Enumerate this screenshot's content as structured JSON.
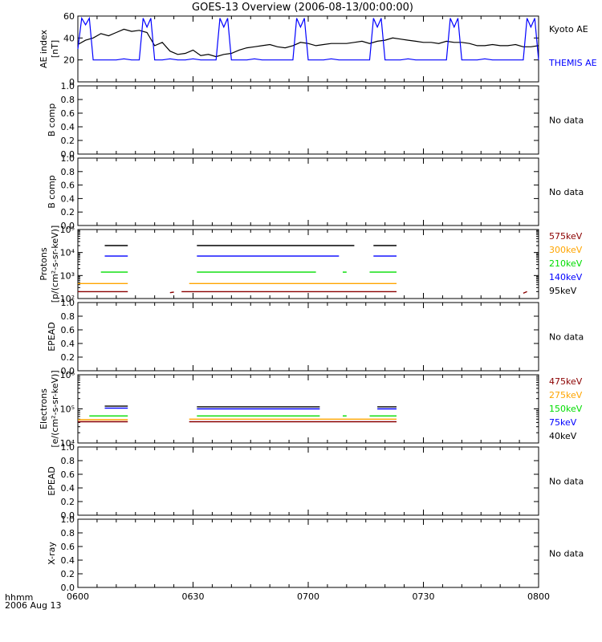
{
  "title": "GOES-13 Overview (2006-08-13/00:00:00)",
  "x_axis": {
    "ticks": [
      "0600",
      "0630",
      "0700",
      "0730",
      "0800"
    ],
    "corner_label_1": "hhmm",
    "corner_label_2": "2006 Aug 13",
    "range_minutes": [
      360,
      480
    ]
  },
  "colors": {
    "black": "#000000",
    "blue": "#0000ff",
    "green": "#00dd00",
    "orange": "#ffa500",
    "red": "#8b0000"
  },
  "chart_data": [
    {
      "type": "line",
      "panel": "ae_index",
      "ylabel": [
        "AE index",
        "[nT]"
      ],
      "ylim": [
        0,
        60
      ],
      "yticks": [
        "0",
        "20",
        "40",
        "60"
      ],
      "legend": [
        "Kyoto AE",
        "THEMIS AE"
      ],
      "series": [
        {
          "name": "Kyoto AE",
          "color": "#000000",
          "x": [
            360,
            362,
            364,
            366,
            368,
            370,
            372,
            374,
            376,
            378,
            380,
            382,
            384,
            386,
            388,
            390,
            392,
            394,
            396,
            398,
            400,
            402,
            404,
            406,
            408,
            410,
            412,
            414,
            416,
            418,
            420,
            422,
            424,
            426,
            428,
            430,
            432,
            434,
            436,
            438,
            440,
            442,
            444,
            446,
            448,
            450,
            452,
            454,
            456,
            458,
            460,
            462,
            464,
            466,
            468,
            470,
            472,
            474,
            476,
            478,
            480
          ],
          "values": [
            34,
            38,
            40,
            44,
            42,
            45,
            48,
            46,
            47,
            45,
            33,
            36,
            28,
            25,
            26,
            29,
            24,
            25,
            23,
            25,
            26,
            29,
            31,
            32,
            33,
            34,
            32,
            31,
            33,
            36,
            35,
            33,
            34,
            35,
            35,
            35,
            36,
            37,
            35,
            37,
            38,
            40,
            39,
            38,
            37,
            36,
            36,
            35,
            37,
            36,
            36,
            35,
            33,
            33,
            34,
            33,
            33,
            34,
            32,
            32,
            33
          ]
        },
        {
          "name": "THEMIS AE",
          "color": "#0000ff",
          "x": [
            360,
            361,
            362,
            363,
            364,
            365,
            366,
            368,
            370,
            372,
            374,
            376,
            377,
            378,
            379,
            380,
            381,
            382,
            384,
            386,
            388,
            390,
            392,
            394,
            396,
            397,
            398,
            399,
            400,
            401,
            402,
            404,
            406,
            408,
            410,
            412,
            414,
            416,
            417,
            418,
            419,
            420,
            421,
            422,
            424,
            426,
            428,
            430,
            432,
            434,
            436,
            437,
            438,
            439,
            440,
            441,
            442,
            444,
            446,
            448,
            450,
            452,
            454,
            456,
            457,
            458,
            459,
            460,
            461,
            462,
            464,
            466,
            468,
            470,
            472,
            474,
            476,
            477,
            478,
            479,
            480
          ],
          "values": [
            30,
            58,
            52,
            58,
            20,
            20,
            20,
            20,
            20,
            21,
            20,
            20,
            58,
            50,
            58,
            20,
            20,
            20,
            21,
            20,
            20,
            21,
            20,
            20,
            20,
            58,
            50,
            58,
            20,
            20,
            20,
            20,
            21,
            20,
            20,
            20,
            20,
            20,
            58,
            50,
            58,
            20,
            20,
            20,
            20,
            21,
            20,
            20,
            20,
            20,
            20,
            58,
            50,
            58,
            20,
            20,
            20,
            20,
            21,
            20,
            20,
            20,
            20,
            20,
            58,
            50,
            58,
            20,
            20,
            20,
            20,
            21,
            20,
            20,
            20,
            20,
            20,
            58,
            50,
            58,
            20
          ]
        }
      ]
    },
    {
      "type": "line",
      "panel": "b_comp_1",
      "ylabel": [
        "B comp"
      ],
      "ylim": [
        0,
        1
      ],
      "yticks": [
        "0.0",
        "0.2",
        "0.4",
        "0.6",
        "0.8",
        "1.0"
      ],
      "note": "No data",
      "series": []
    },
    {
      "type": "line",
      "panel": "b_comp_2",
      "ylabel": [
        "B comp"
      ],
      "ylim": [
        0,
        1
      ],
      "yticks": [
        "0.0",
        "0.2",
        "0.4",
        "0.6",
        "0.8",
        "1.0"
      ],
      "note": "No data",
      "series": []
    },
    {
      "type": "line",
      "panel": "protons",
      "ylabel": [
        "Protons",
        "[p/(cm²-s-sr-keV)]"
      ],
      "scale": "log",
      "ylim": [
        100,
        100000
      ],
      "yticks": [
        "10²",
        "10³",
        "10⁴",
        "10⁵"
      ],
      "legend": [
        "575keV",
        "300keV",
        "210keV",
        "140keV",
        "95keV"
      ],
      "series": [
        {
          "name": "95keV",
          "color": "#000000",
          "segments": [
            [
              [
                367,
                20000
              ],
              [
                373,
                20000
              ]
            ],
            [
              [
                391,
                20000
              ],
              [
                432,
                20000
              ]
            ],
            [
              [
                437,
                20000
              ],
              [
                443,
                20000
              ]
            ]
          ]
        },
        {
          "name": "140keV",
          "color": "#0000ff",
          "segments": [
            [
              [
                367,
                7000
              ],
              [
                373,
                7000
              ]
            ],
            [
              [
                391,
                7000
              ],
              [
                428,
                7000
              ]
            ],
            [
              [
                437,
                7000
              ],
              [
                443,
                7000
              ]
            ]
          ]
        },
        {
          "name": "210keV",
          "color": "#00dd00",
          "segments": [
            [
              [
                366,
                1400
              ],
              [
                373,
                1400
              ]
            ],
            [
              [
                391,
                1400
              ],
              [
                422,
                1400
              ]
            ],
            [
              [
                429,
                1400
              ],
              [
                430,
                1400
              ]
            ],
            [
              [
                436,
                1400
              ],
              [
                443,
                1400
              ]
            ]
          ]
        },
        {
          "name": "300keV",
          "color": "#ffa500",
          "segments": [
            [
              [
                360,
                450
              ],
              [
                373,
                450
              ]
            ],
            [
              [
                389,
                450
              ],
              [
                443,
                450
              ]
            ]
          ]
        },
        {
          "name": "575keV",
          "color": "#8b0000",
          "segments": [
            [
              [
                360,
                200
              ],
              [
                373,
                200
              ]
            ],
            [
              [
                384,
                180
              ],
              [
                385,
                190
              ]
            ],
            [
              [
                387,
                200
              ],
              [
                443,
                200
              ]
            ],
            [
              [
                476,
                170
              ],
              [
                477,
                200
              ]
            ]
          ]
        }
      ]
    },
    {
      "type": "line",
      "panel": "epead_1",
      "ylabel": [
        "EPEAD"
      ],
      "ylim": [
        0,
        1
      ],
      "yticks": [
        "0.0",
        "0.2",
        "0.4",
        "0.6",
        "0.8",
        "1.0"
      ],
      "note": "No data",
      "series": []
    },
    {
      "type": "line",
      "panel": "electrons",
      "ylabel": [
        "Electrons",
        "[e/(cm²-s-sr-keV)]"
      ],
      "scale": "log",
      "ylim": [
        10000,
        1000000
      ],
      "yticks": [
        "10⁴",
        "10⁵",
        "10⁶"
      ],
      "legend": [
        "475keV",
        "275keV",
        "150keV",
        "75keV",
        "40keV"
      ],
      "series": [
        {
          "name": "40keV",
          "color": "#000000",
          "segments": [
            [
              [
                367,
                120000
              ],
              [
                373,
                120000
              ]
            ],
            [
              [
                391,
                115000
              ],
              [
                423,
                115000
              ]
            ],
            [
              [
                438,
                115000
              ],
              [
                443,
                115000
              ]
            ]
          ]
        },
        {
          "name": "75keV",
          "color": "#0000ff",
          "segments": [
            [
              [
                367,
                105000
              ],
              [
                373,
                105000
              ]
            ],
            [
              [
                391,
                100000
              ],
              [
                423,
                100000
              ]
            ],
            [
              [
                438,
                100000
              ],
              [
                443,
                100000
              ]
            ]
          ]
        },
        {
          "name": "150keV",
          "color": "#00dd00",
          "segments": [
            [
              [
                363,
                62000
              ],
              [
                373,
                62000
              ]
            ],
            [
              [
                391,
                62000
              ],
              [
                423,
                62000
              ]
            ],
            [
              [
                429,
                62000
              ],
              [
                430,
                62000
              ]
            ],
            [
              [
                436,
                62000
              ],
              [
                443,
                62000
              ]
            ]
          ]
        },
        {
          "name": "275keV",
          "color": "#ffa500",
          "segments": [
            [
              [
                360,
                48000
              ],
              [
                373,
                48000
              ]
            ],
            [
              [
                389,
                50000
              ],
              [
                443,
                50000
              ]
            ]
          ]
        },
        {
          "name": "475keV",
          "color": "#8b0000",
          "segments": [
            [
              [
                360,
                42000
              ],
              [
                373,
                42000
              ]
            ],
            [
              [
                389,
                42000
              ],
              [
                443,
                42000
              ]
            ]
          ]
        }
      ]
    },
    {
      "type": "line",
      "panel": "epead_2",
      "ylabel": [
        "EPEAD"
      ],
      "ylim": [
        0,
        1
      ],
      "yticks": [
        "0.0",
        "0.2",
        "0.4",
        "0.6",
        "0.8",
        "1.0"
      ],
      "note": "No data",
      "series": []
    },
    {
      "type": "line",
      "panel": "xray",
      "ylabel": [
        "X-ray"
      ],
      "ylim": [
        0,
        1
      ],
      "yticks": [
        "0.0",
        "0.2",
        "0.4",
        "0.6",
        "0.8",
        "1.0"
      ],
      "note": "No data",
      "series": []
    }
  ]
}
